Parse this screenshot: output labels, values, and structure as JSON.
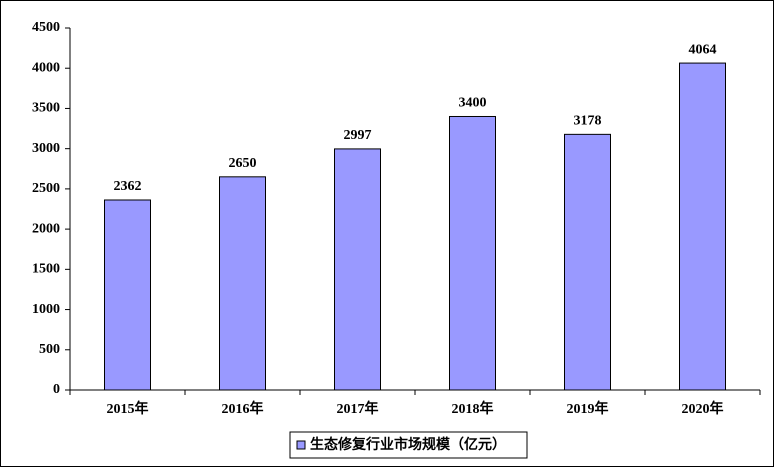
{
  "chart_data": {
    "type": "bar",
    "categories": [
      "2015年",
      "2016年",
      "2017年",
      "2018年",
      "2019年",
      "2020年"
    ],
    "series": [
      {
        "name": "生态修复行业市场规模（亿元）",
        "color": "#9999ff",
        "values": [
          2362,
          2650,
          2997,
          3400,
          3178,
          4064
        ]
      }
    ],
    "ylim": [
      0,
      4500
    ],
    "yticks": [
      0,
      500,
      1000,
      1500,
      2000,
      2500,
      3000,
      3500,
      4000,
      4500
    ],
    "grid": false,
    "legend": "bottom",
    "data_labels": true
  }
}
